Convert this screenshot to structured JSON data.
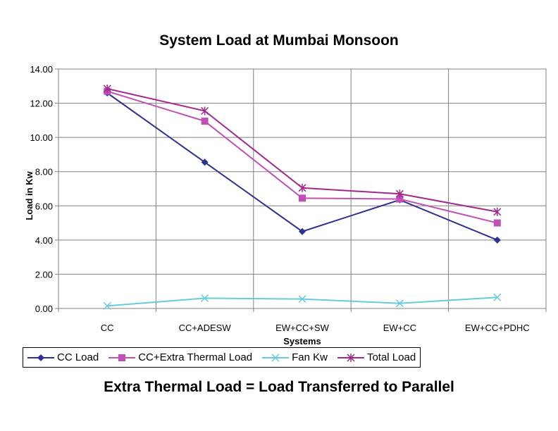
{
  "chart_data": {
    "type": "line",
    "title": "System Load at Mumbai Monsoon",
    "xlabel": "Systems",
    "ylabel": "Load in Kw",
    "categories": [
      "CC",
      "CC+ADESW",
      "EW+CC+SW",
      "EW+CC",
      "EW+CC+PDHC"
    ],
    "ylim": [
      0,
      14
    ],
    "yticks": [
      "0.00",
      "2.00",
      "4.00",
      "6.00",
      "8.00",
      "10.00",
      "12.00",
      "14.00"
    ],
    "grid": true,
    "legend_position": "bottom",
    "series": [
      {
        "name": "CC Load",
        "values": [
          12.6,
          8.55,
          4.5,
          6.35,
          4.0
        ],
        "color": "#2E3192",
        "marker": "diamond"
      },
      {
        "name": "CC+Extra Thermal Load",
        "values": [
          12.7,
          10.95,
          6.45,
          6.4,
          5.0
        ],
        "color": "#C14FB5",
        "marker": "square"
      },
      {
        "name": "Fan Kw",
        "values": [
          0.15,
          0.6,
          0.55,
          0.3,
          0.65
        ],
        "color": "#66CCDD",
        "marker": "x"
      },
      {
        "name": "Total Load",
        "values": [
          12.85,
          11.55,
          7.05,
          6.7,
          5.65
        ],
        "color": "#A1298E",
        "marker": "star"
      }
    ]
  },
  "caption": "Extra Thermal Load = Load Transferred to Parallel"
}
